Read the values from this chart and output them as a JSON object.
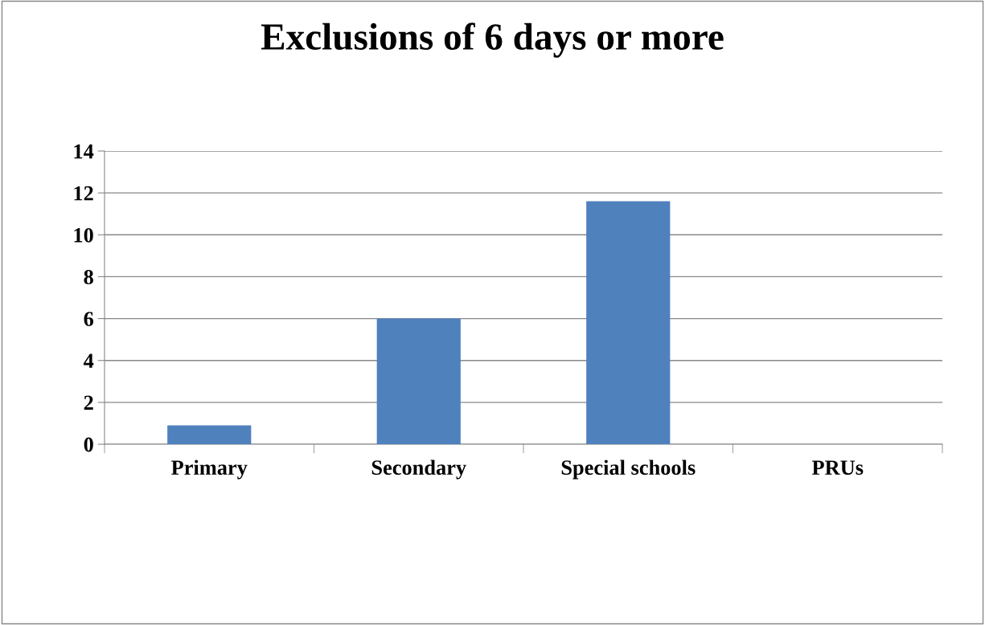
{
  "chart_data": {
    "type": "bar",
    "title": "Exclusions of 6 days or more",
    "categories": [
      "Primary",
      "Secondary",
      "Special schools",
      "PRUs"
    ],
    "values": [
      0.9,
      6.0,
      11.6,
      0
    ],
    "color": "#4f81bd",
    "ylim": [
      0,
      14
    ],
    "yticks": [
      0,
      2,
      4,
      6,
      8,
      10,
      12,
      14
    ],
    "grid": "y"
  }
}
